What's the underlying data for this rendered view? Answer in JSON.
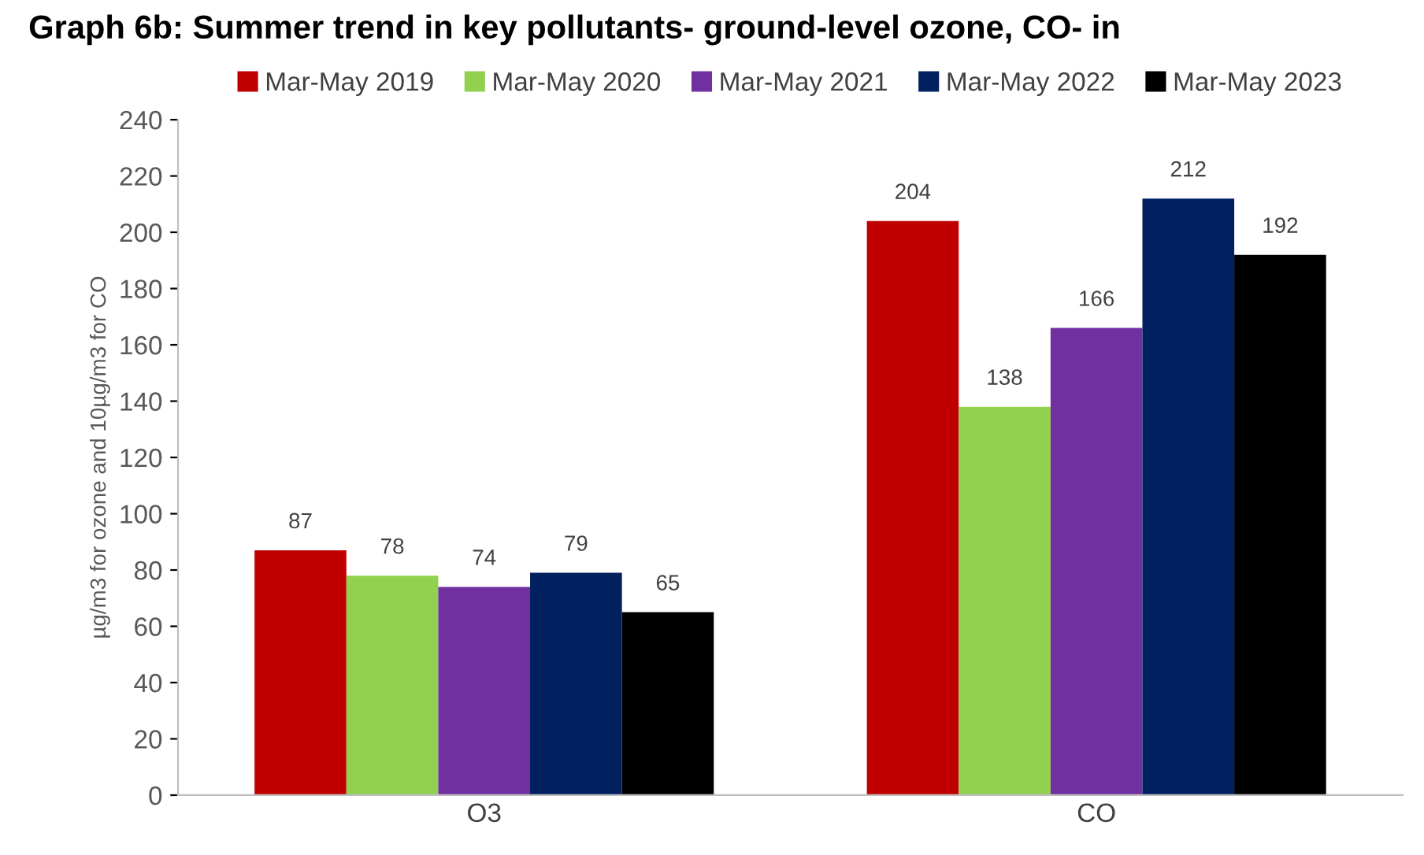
{
  "chart_data": {
    "type": "bar",
    "title": "Graph 6b: Summer trend in key pollutants- ground-level ozone, CO- in",
    "ylabel": "µg/m3 for ozone and 10µg/m3 for CO",
    "categories": [
      "O3",
      "CO"
    ],
    "series": [
      {
        "name": "Mar-May 2019",
        "color": "#c00000",
        "values": [
          87,
          204
        ]
      },
      {
        "name": "Mar-May 2020",
        "color": "#92d050",
        "values": [
          78,
          138
        ]
      },
      {
        "name": "Mar-May 2021",
        "color": "#7030a0",
        "values": [
          74,
          166
        ]
      },
      {
        "name": "Mar-May 2022",
        "color": "#002060",
        "values": [
          79,
          212
        ]
      },
      {
        "name": "Mar-May 2023",
        "color": "#000000",
        "values": [
          65,
          192
        ]
      }
    ],
    "ylim": [
      0,
      240
    ],
    "yticks": [
      0,
      20,
      40,
      60,
      80,
      100,
      120,
      140,
      160,
      180,
      200,
      220,
      240
    ],
    "data_labels": true,
    "legend": "top",
    "grid": false
  }
}
